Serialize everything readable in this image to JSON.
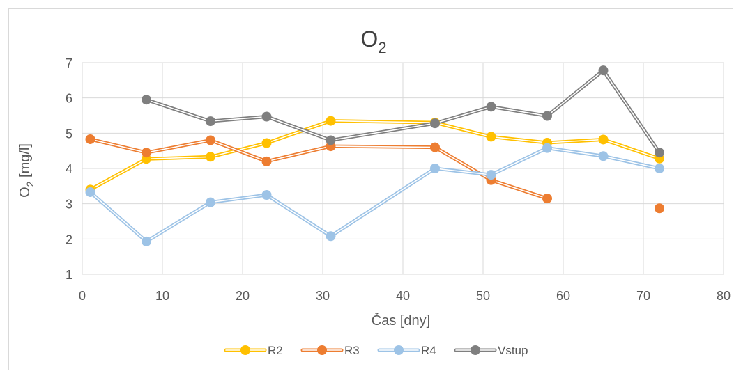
{
  "chart_data": {
    "type": "line",
    "title": {
      "main": "O",
      "sub": "2"
    },
    "xlabel": "Čas [dny]",
    "ylabel": {
      "pre": "O",
      "sub": "2",
      "post": " [mg/l]"
    },
    "xlim": [
      0,
      80
    ],
    "ylim": [
      1,
      7
    ],
    "xticks": [
      "0",
      "10",
      "20",
      "30",
      "40",
      "50",
      "60",
      "70",
      "80"
    ],
    "yticks": [
      "1",
      "2",
      "3",
      "4",
      "5",
      "6",
      "7"
    ],
    "grid": true,
    "legend_position": "bottom",
    "series": [
      {
        "name": "R2",
        "color": "#FFC000",
        "points": [
          [
            1,
            3.4
          ],
          [
            8,
            4.27
          ],
          [
            16,
            4.33
          ],
          [
            23,
            4.72
          ],
          [
            31,
            5.35
          ],
          [
            44,
            5.3
          ],
          [
            51,
            4.9
          ],
          [
            58,
            4.73
          ],
          [
            65,
            4.82
          ],
          [
            72,
            4.28
          ]
        ]
      },
      {
        "name": "R3",
        "color": "#ED7D31",
        "points": [
          [
            1,
            4.83
          ],
          [
            8,
            4.45
          ],
          [
            16,
            4.8
          ],
          [
            23,
            4.2
          ],
          [
            31,
            4.63
          ],
          [
            44,
            4.6
          ],
          [
            51,
            3.67
          ],
          [
            58,
            3.15
          ],
          [
            72,
            2.87
          ]
        ],
        "gaps_before": [
          8
        ]
      },
      {
        "name": "R4",
        "color": "#9DC3E6",
        "points": [
          [
            1,
            3.33
          ],
          [
            8,
            1.93
          ],
          [
            16,
            3.04
          ],
          [
            23,
            3.25
          ],
          [
            31,
            2.08
          ],
          [
            44,
            4.0
          ],
          [
            51,
            3.82
          ],
          [
            58,
            4.58
          ],
          [
            65,
            4.35
          ],
          [
            72,
            4.0
          ]
        ]
      },
      {
        "name": "Vstup",
        "color": "#7F7F7F",
        "points": [
          [
            8,
            5.95
          ],
          [
            16,
            5.34
          ],
          [
            23,
            5.47
          ],
          [
            31,
            4.8
          ],
          [
            44,
            5.28
          ],
          [
            51,
            5.75
          ],
          [
            58,
            5.49
          ],
          [
            65,
            6.78
          ],
          [
            72,
            4.45
          ]
        ]
      }
    ]
  }
}
